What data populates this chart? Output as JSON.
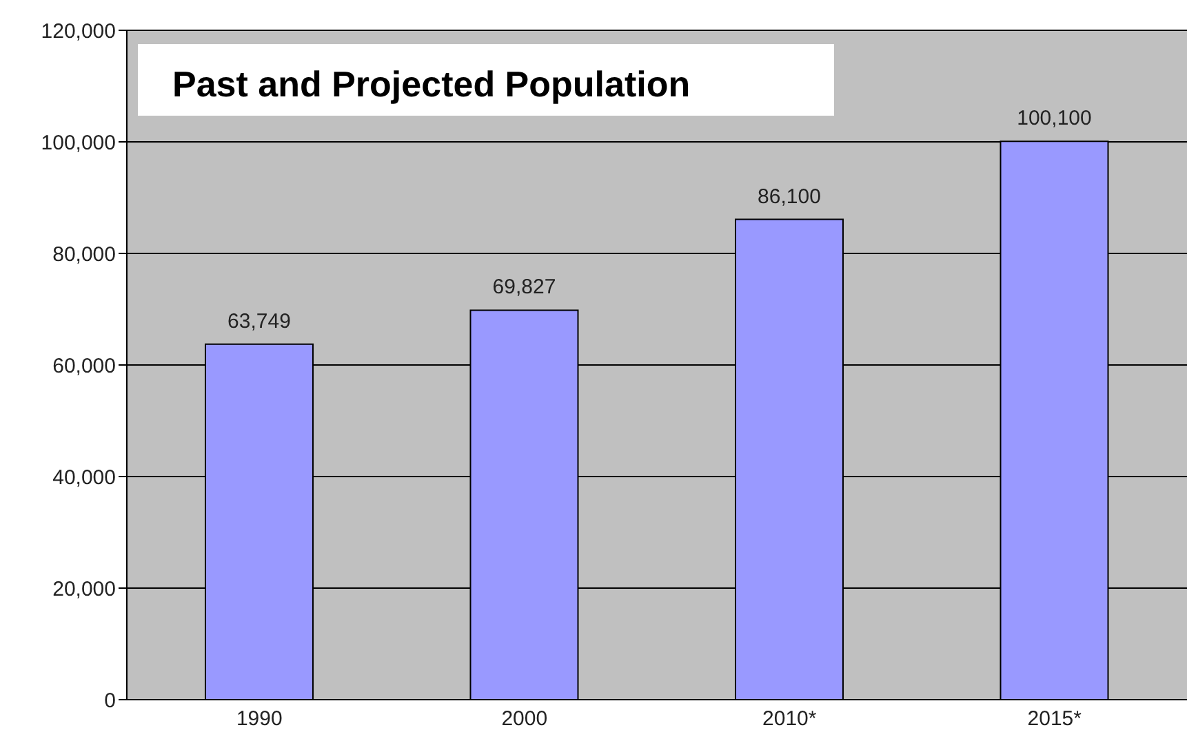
{
  "chart_data": {
    "type": "bar",
    "title": "Past and Projected Population",
    "categories": [
      "1990",
      "2000",
      "2010*",
      "2015*"
    ],
    "values": [
      63749,
      69827,
      86100,
      100100
    ],
    "color": "#9999ff",
    "ylim": [
      0,
      120000
    ],
    "yticks": [
      {
        "value": 0,
        "label": "0"
      },
      {
        "value": 20000,
        "label": "20,000"
      },
      {
        "value": 40000,
        "label": "40,000"
      },
      {
        "value": 60000,
        "label": "60,000"
      },
      {
        "value": 80000,
        "label": "80,000"
      },
      {
        "value": 100000,
        "label": "100,000"
      },
      {
        "value": 120000,
        "label": "120,000"
      }
    ],
    "grid": "y",
    "value_labels": [
      "63,749",
      "69,827",
      "86,100",
      "100,100"
    ]
  }
}
